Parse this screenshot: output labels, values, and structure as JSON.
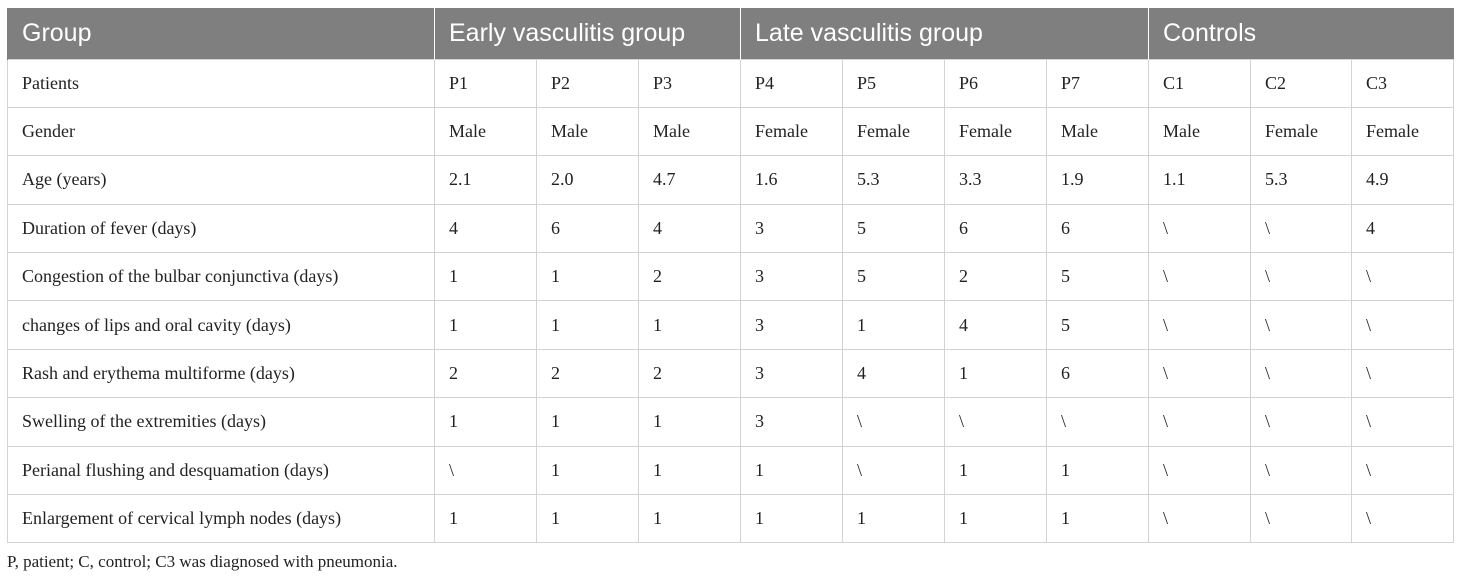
{
  "table": {
    "header": [
      {
        "label": "Group",
        "colspan": 1
      },
      {
        "label": "Early vasculitis group",
        "colspan": 3
      },
      {
        "label": "Late vasculitis group",
        "colspan": 4
      },
      {
        "label": "Controls",
        "colspan": 3
      }
    ],
    "rows": [
      [
        "Patients",
        "P1",
        "P2",
        "P3",
        "P4",
        "P5",
        "P6",
        "P7",
        "C1",
        "C2",
        "C3"
      ],
      [
        "Gender",
        "Male",
        "Male",
        "Male",
        "Female",
        "Female",
        "Female",
        "Male",
        "Male",
        "Female",
        "Female"
      ],
      [
        "Age (years)",
        "2.1",
        "2.0",
        "4.7",
        "1.6",
        "5.3",
        "3.3",
        "1.9",
        "1.1",
        "5.3",
        "4.9"
      ],
      [
        "Duration of fever (days)",
        "4",
        "6",
        "4",
        "3",
        "5",
        "6",
        "6",
        "\\",
        "\\",
        "4"
      ],
      [
        "Congestion of the bulbar conjunctiva (days)",
        "1",
        "1",
        "2",
        "3",
        "5",
        "2",
        "5",
        "\\",
        "\\",
        "\\"
      ],
      [
        "changes of lips and oral cavity (days)",
        "1",
        "1",
        "1",
        "3",
        "1",
        "4",
        "5",
        "\\",
        "\\",
        "\\"
      ],
      [
        "Rash and erythema multiforme (days)",
        "2",
        "2",
        "2",
        "3",
        "4",
        "1",
        "6",
        "\\",
        "\\",
        "\\"
      ],
      [
        "Swelling of the extremities (days)",
        "1",
        "1",
        "1",
        "3",
        "\\",
        "\\",
        "\\",
        "\\",
        "\\",
        "\\"
      ],
      [
        "Perianal flushing and desquamation (days)",
        "\\",
        "1",
        "1",
        "1",
        "\\",
        "1",
        "1",
        "\\",
        "\\",
        "\\"
      ],
      [
        "Enlargement of cervical lymph nodes (days)",
        "1",
        "1",
        "1",
        "1",
        "1",
        "1",
        "1",
        "\\",
        "\\",
        "\\"
      ]
    ]
  },
  "footnote": "P, patient; C, control; C3 was diagnosed with pneumonia.",
  "colors": {
    "header_bg": "#7f7f7f",
    "header_text": "#ffffff",
    "grid": "#d3d3d3"
  }
}
